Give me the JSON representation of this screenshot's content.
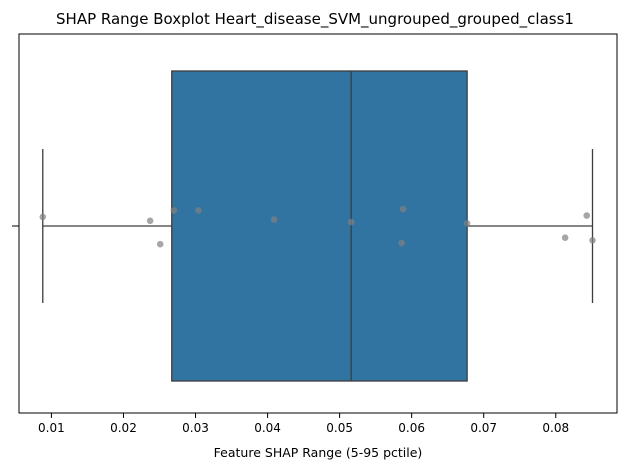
{
  "chart_data": {
    "type": "boxplot",
    "title": "SHAP Range Boxplot Heart_disease_SVM_ungrouped_grouped_class1",
    "xlabel": "Feature SHAP Range (5-95 pctile)",
    "ylabel": "",
    "xlim": [
      0.0055,
      0.0885
    ],
    "xticks": [
      0.01,
      0.02,
      0.03,
      0.04,
      0.05,
      0.06,
      0.07,
      0.08
    ],
    "xtick_labels": [
      "0.01",
      "0.02",
      "0.03",
      "0.04",
      "0.05",
      "0.06",
      "0.07",
      "0.08"
    ],
    "grid": false,
    "box": {
      "whisker_low": 0.0088,
      "q1": 0.0267,
      "median": 0.0516,
      "q3": 0.0677,
      "whisker_high": 0.0851,
      "color": "#3274a1",
      "line_color": "#3d3d3d"
    },
    "points": [
      {
        "x": 0.0088,
        "jitter": 0.07
      },
      {
        "x": 0.0237,
        "jitter": 0.04
      },
      {
        "x": 0.0251,
        "jitter": -0.14
      },
      {
        "x": 0.027,
        "jitter": 0.12
      },
      {
        "x": 0.0304,
        "jitter": 0.12
      },
      {
        "x": 0.0409,
        "jitter": 0.05
      },
      {
        "x": 0.0516,
        "jitter": 0.03
      },
      {
        "x": 0.0586,
        "jitter": -0.13
      },
      {
        "x": 0.0588,
        "jitter": 0.13
      },
      {
        "x": 0.0677,
        "jitter": 0.02
      },
      {
        "x": 0.0813,
        "jitter": -0.09
      },
      {
        "x": 0.0843,
        "jitter": 0.08
      },
      {
        "x": 0.0851,
        "jitter": -0.11
      }
    ],
    "point_color": "#808080"
  }
}
